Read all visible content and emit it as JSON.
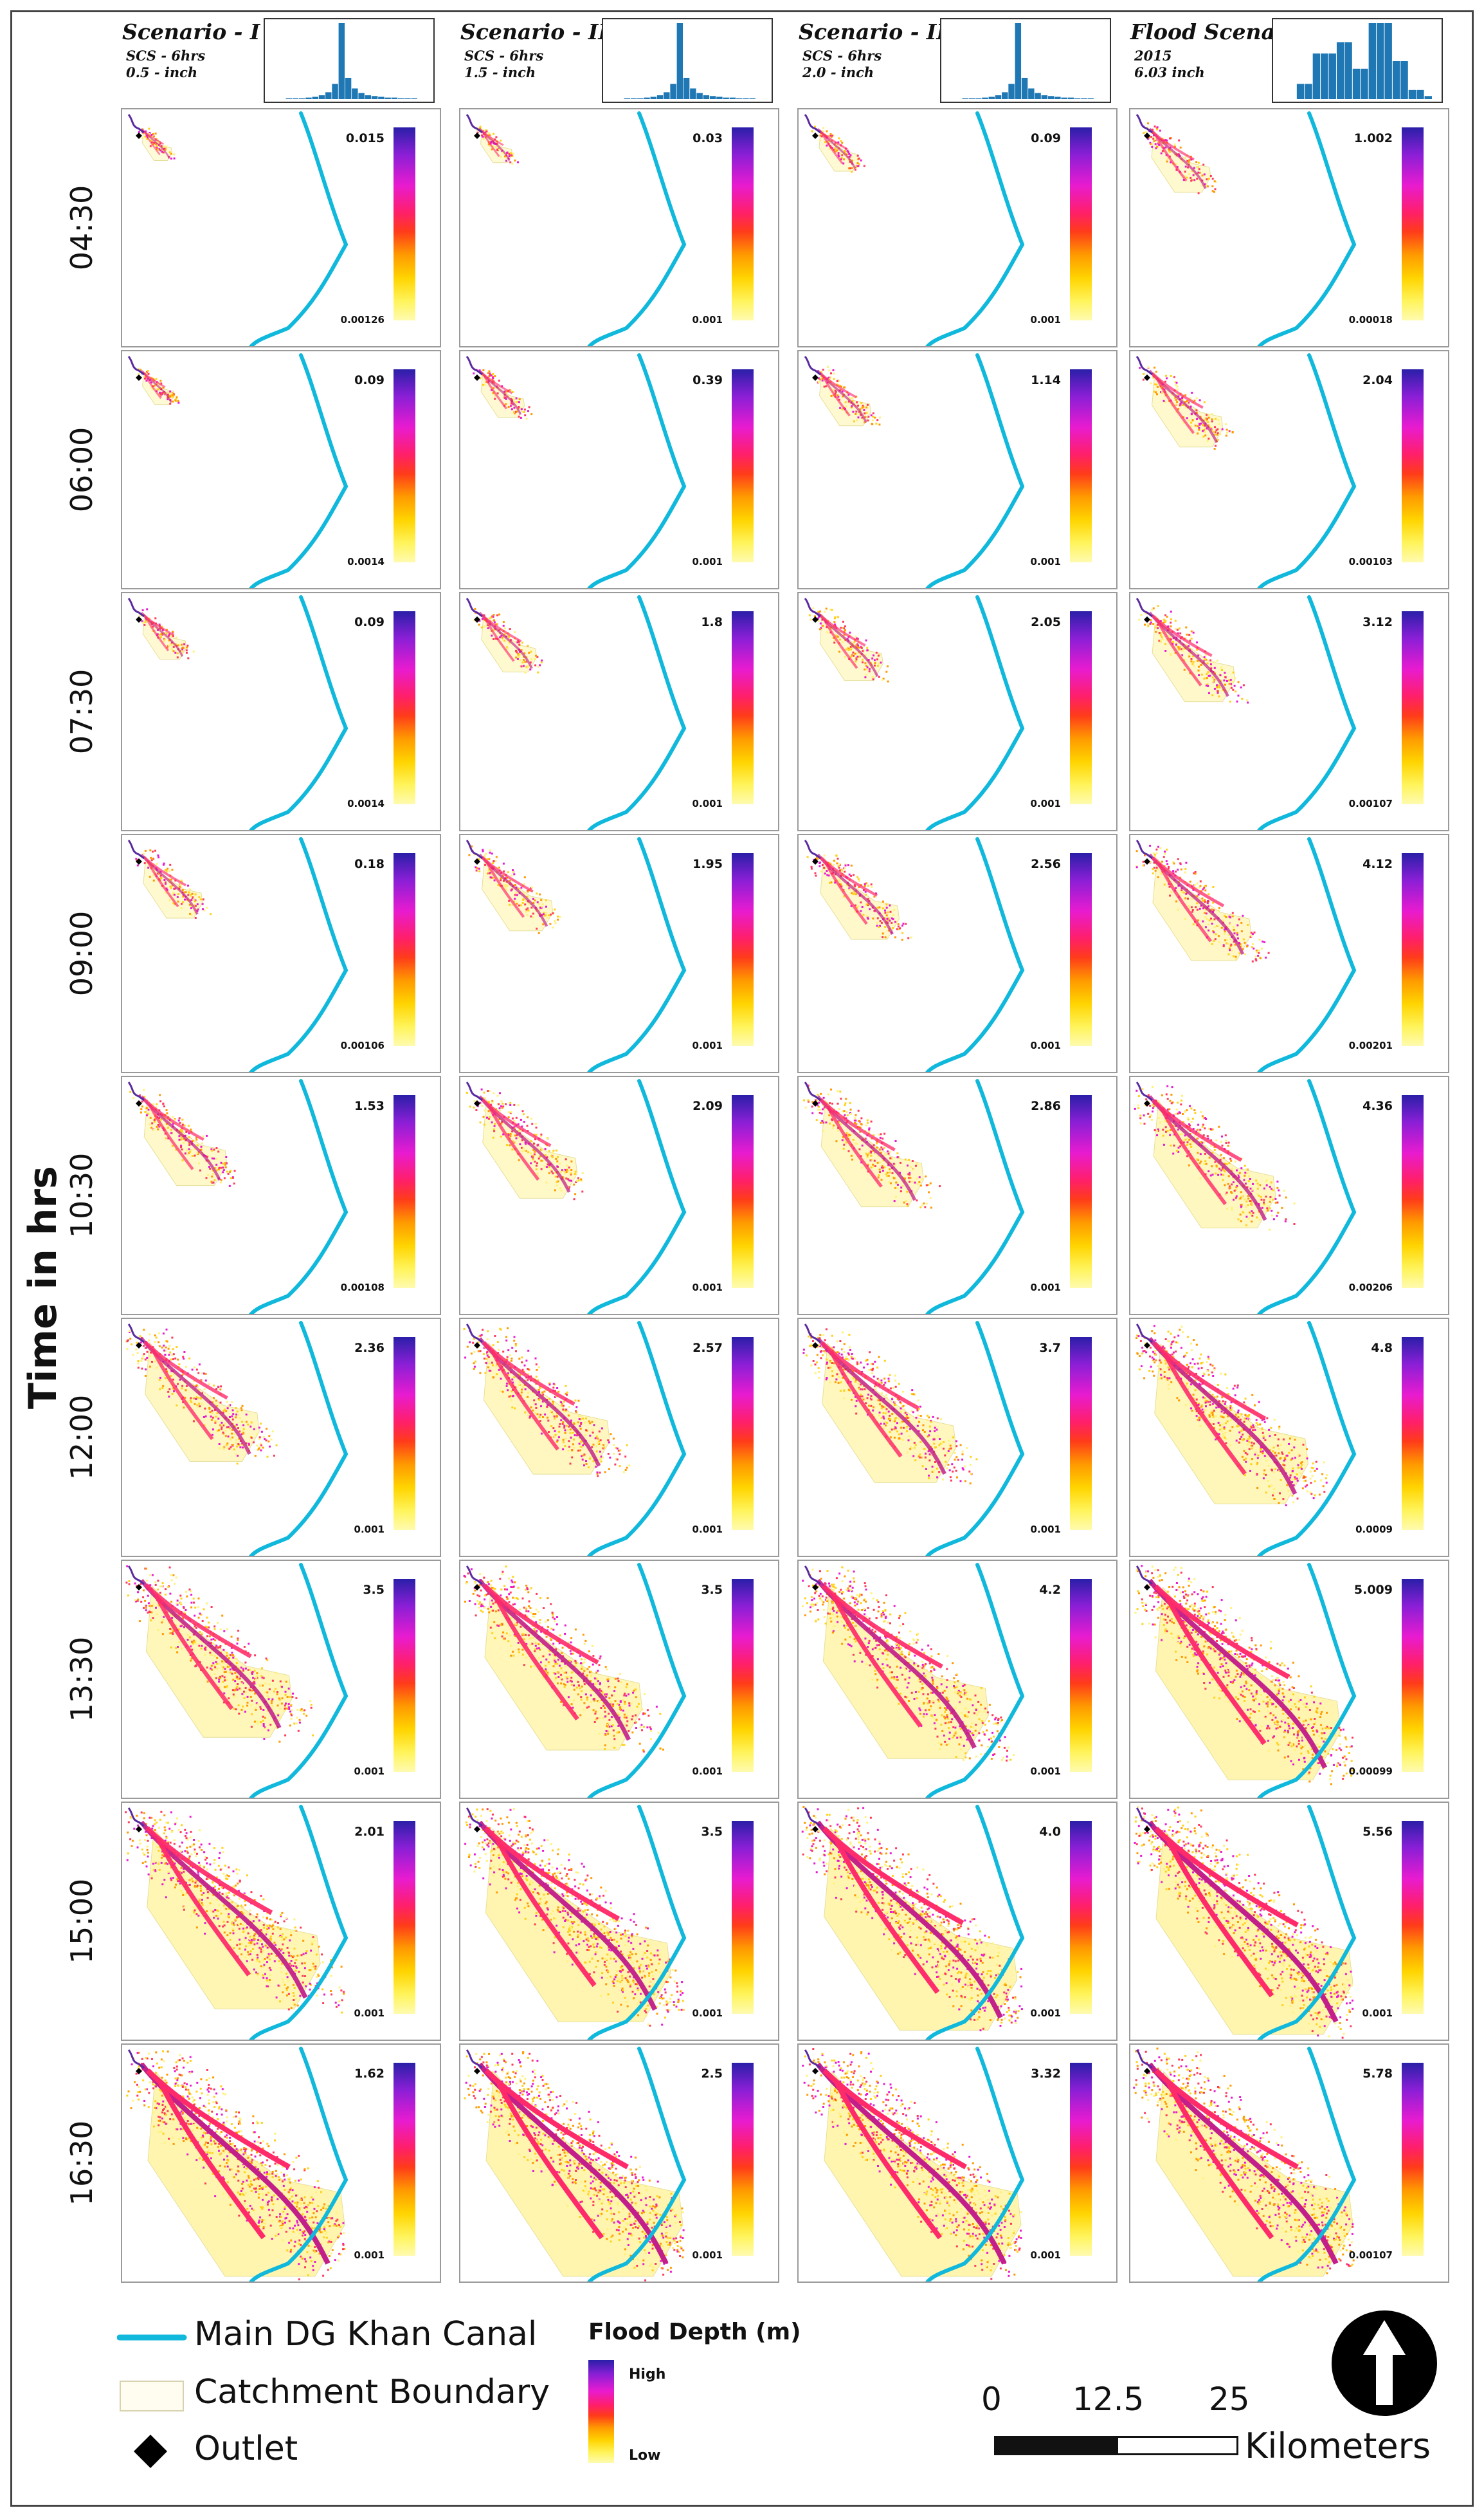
{
  "scenarios": [
    {
      "title": "Scenario - I",
      "line1": "SCS - 6hrs",
      "line2": "0.5 - inch",
      "hyetograph": [
        0,
        0,
        1,
        1,
        1,
        2,
        3,
        5,
        9,
        20,
        100,
        28,
        14,
        8,
        5,
        4,
        3,
        2,
        2,
        1,
        1,
        1,
        0
      ]
    },
    {
      "title": "Scenario - II",
      "line1": "SCS - 6hrs",
      "line2": "1.5 - inch",
      "hyetograph": [
        0,
        0,
        1,
        1,
        1,
        2,
        3,
        5,
        9,
        20,
        100,
        28,
        14,
        8,
        5,
        4,
        3,
        2,
        2,
        1,
        1,
        1,
        0
      ]
    },
    {
      "title": "Scenario - III",
      "line1": "SCS - 6hrs",
      "line2": "2.0 - inch",
      "hyetograph": [
        0,
        0,
        1,
        1,
        1,
        2,
        3,
        5,
        9,
        20,
        100,
        28,
        14,
        8,
        5,
        4,
        3,
        2,
        2,
        1,
        1,
        1,
        0
      ]
    },
    {
      "title": "Flood Scenario -",
      "line1": "2015",
      "line2": "6.03 inch",
      "hyetograph": [
        0,
        0,
        20,
        20,
        60,
        60,
        60,
        75,
        75,
        40,
        40,
        100,
        100,
        100,
        50,
        50,
        12,
        12,
        4
      ]
    }
  ],
  "axis_title": "Time in hrs",
  "times": [
    "04:30",
    "06:00",
    "07:30",
    "09:00",
    "10:30",
    "12:00",
    "13:30",
    "15:00",
    "16:30"
  ],
  "extents": [
    0.1,
    0.16,
    0.22,
    0.3,
    0.42,
    0.58,
    0.74,
    0.88,
    1.0
  ],
  "grid": [
    [
      {
        "max": "0.015",
        "min": "0.00126"
      },
      {
        "max": "0.03",
        "min": "0.001"
      },
      {
        "max": "0.09",
        "min": "0.001"
      },
      {
        "max": "1.002",
        "min": "0.00018"
      }
    ],
    [
      {
        "max": "0.09",
        "min": "0.0014"
      },
      {
        "max": "0.39",
        "min": "0.001"
      },
      {
        "max": "1.14",
        "min": "0.001"
      },
      {
        "max": "2.04",
        "min": "0.00103"
      }
    ],
    [
      {
        "max": "0.09",
        "min": "0.0014"
      },
      {
        "max": "1.8",
        "min": "0.001"
      },
      {
        "max": "2.05",
        "min": "0.001"
      },
      {
        "max": "3.12",
        "min": "0.00107"
      }
    ],
    [
      {
        "max": "0.18",
        "min": "0.00106"
      },
      {
        "max": "1.95",
        "min": "0.001"
      },
      {
        "max": "2.56",
        "min": "0.001"
      },
      {
        "max": "4.12",
        "min": "0.00201"
      }
    ],
    [
      {
        "max": "1.53",
        "min": "0.00108"
      },
      {
        "max": "2.09",
        "min": "0.001"
      },
      {
        "max": "2.86",
        "min": "0.001"
      },
      {
        "max": "4.36",
        "min": "0.00206"
      }
    ],
    [
      {
        "max": "2.36",
        "min": "0.001"
      },
      {
        "max": "2.57",
        "min": "0.001"
      },
      {
        "max": "3.7",
        "min": "0.001"
      },
      {
        "max": "4.8",
        "min": "0.0009"
      }
    ],
    [
      {
        "max": "3.5",
        "min": "0.001"
      },
      {
        "max": "3.5",
        "min": "0.001"
      },
      {
        "max": "4.2",
        "min": "0.001"
      },
      {
        "max": "5.009",
        "min": "0.00099"
      }
    ],
    [
      {
        "max": "2.01",
        "min": "0.001"
      },
      {
        "max": "3.5",
        "min": "0.001"
      },
      {
        "max": "4.0",
        "min": "0.001"
      },
      {
        "max": "5.56",
        "min": "0.001"
      }
    ],
    [
      {
        "max": "1.62",
        "min": "0.001"
      },
      {
        "max": "2.5",
        "min": "0.001"
      },
      {
        "max": "3.32",
        "min": "0.001"
      },
      {
        "max": "5.78",
        "min": "0.00107"
      }
    ]
  ],
  "legend": {
    "canal": "Main DG Khan Canal",
    "catchment": "Catchment Boundary",
    "outlet": "Outlet",
    "flood_depth_title": "Flood Depth (m)",
    "high": "High",
    "low": "Low"
  },
  "scale": {
    "ticks": [
      "0",
      "12.5",
      "25"
    ],
    "unit": "Kilometers"
  },
  "colors": {
    "canal": "#10b8dc",
    "hyetograph_bar": "#1f77b4"
  }
}
